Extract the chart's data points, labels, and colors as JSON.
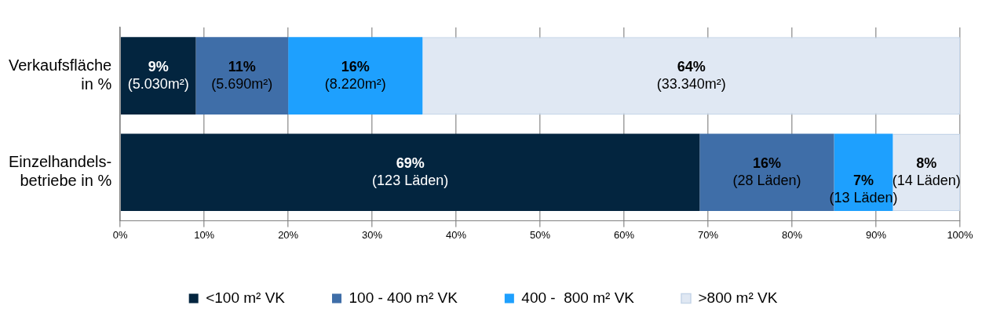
{
  "chart_data": {
    "type": "bar",
    "orientation": "horizontal",
    "stacked": true,
    "categories": [
      "Verkaufsfläche\nin %",
      "Einzelhandels-\nbetriebe in %"
    ],
    "series": [
      {
        "name": "<100 m² VK",
        "color": "#03253f",
        "values": [
          9,
          69
        ],
        "value_labels": [
          "9%\n(5.030m²)",
          "69%\n(123 Läden)"
        ]
      },
      {
        "name": "100 - 400 m² VK",
        "color": "#3f6ea8",
        "values": [
          11,
          16
        ],
        "value_labels": [
          "11%\n(5.690m²)",
          "16%\n(28 Läden)"
        ]
      },
      {
        "name": "400 -  800 m² VK",
        "color": "#1ea0fe",
        "values": [
          16,
          7
        ],
        "value_labels": [
          "16%\n(8.220m²)",
          "7%\n(13 Läden)"
        ]
      },
      {
        "name": ">800 m² VK",
        "color": "#e0e8f3",
        "values": [
          64,
          8
        ],
        "value_labels": [
          "64%\n(33.340m²)",
          "8%\n(14 Läden)"
        ]
      }
    ],
    "xlim": [
      0,
      100
    ],
    "xticks": [
      {
        "value": 0,
        "label": "0%"
      },
      {
        "value": 10,
        "label": "10%"
      },
      {
        "value": 20,
        "label": "20%"
      },
      {
        "value": 30,
        "label": "30%"
      },
      {
        "value": 40,
        "label": "40%"
      },
      {
        "value": 50,
        "label": "50%"
      },
      {
        "value": 60,
        "label": "60%"
      },
      {
        "value": 70,
        "label": "70%"
      },
      {
        "value": 80,
        "label": "80%"
      },
      {
        "value": 90,
        "label": "90%"
      },
      {
        "value": 100,
        "label": "100%"
      }
    ],
    "grid": "x",
    "legend": "bottom"
  }
}
